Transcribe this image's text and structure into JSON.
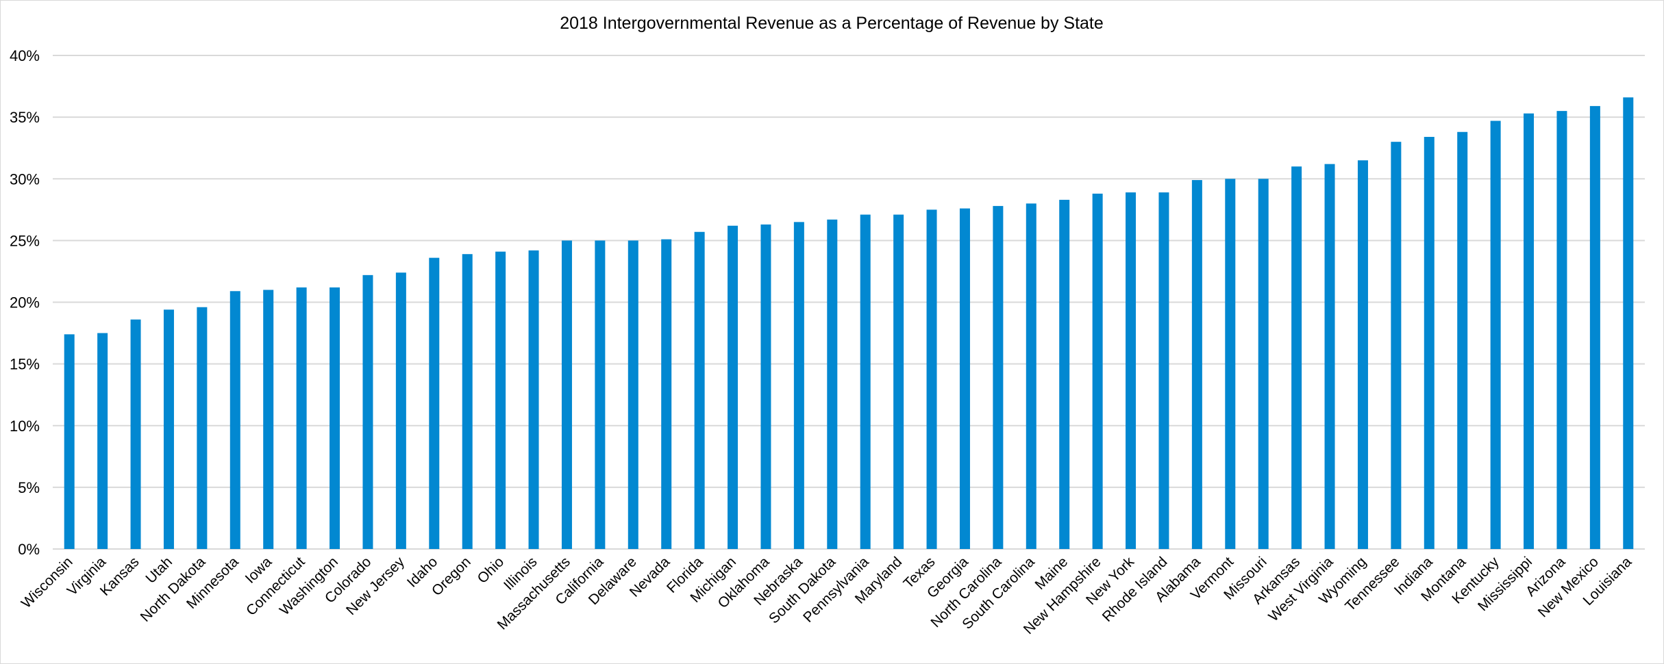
{
  "chart_data": {
    "type": "bar",
    "title": "2018 Intergovernmental Revenue as a Percentage of Revenue by State",
    "xlabel": "",
    "ylabel": "",
    "ylim": [
      0,
      40
    ],
    "yticks": [
      "0%",
      "5%",
      "10%",
      "15%",
      "20%",
      "25%",
      "30%",
      "35%",
      "40%"
    ],
    "grid": true,
    "bar_color": "#0288D1",
    "categories": [
      "Wisconsin",
      "Virginia",
      "Kansas",
      "Utah",
      "North Dakota",
      "Minnesota",
      "Iowa",
      "Connecticut",
      "Washington",
      "Colorado",
      "New Jersey",
      "Idaho",
      "Oregon",
      "Ohio",
      "Illinois",
      "Massachusetts",
      "California",
      "Delaware",
      "Nevada",
      "Florida",
      "Michigan",
      "Oklahoma",
      "Nebraska",
      "South Dakota",
      "Pennsylvania",
      "Maryland",
      "Texas",
      "Georgia",
      "North Carolina",
      "South Carolina",
      "Maine",
      "New Hampshire",
      "New York",
      "Rhode Island",
      "Alabama",
      "Vermont",
      "Missouri",
      "Arkansas",
      "West Virginia",
      "Wyoming",
      "Tennessee",
      "Indiana",
      "Montana",
      "Kentucky",
      "Mississippi",
      "Arizona",
      "New Mexico",
      "Louisiana"
    ],
    "values": [
      17.4,
      17.5,
      18.6,
      19.4,
      19.6,
      20.9,
      21.0,
      21.2,
      21.2,
      22.2,
      22.4,
      23.6,
      23.9,
      24.1,
      24.2,
      25.0,
      25.0,
      25.0,
      25.1,
      25.7,
      26.2,
      26.3,
      26.5,
      26.7,
      27.1,
      27.1,
      27.5,
      27.6,
      27.8,
      28.0,
      28.3,
      28.8,
      28.9,
      28.9,
      29.9,
      30.0,
      30.0,
      31.0,
      31.2,
      31.5,
      33.0,
      33.4,
      33.8,
      34.7,
      35.3,
      35.5,
      35.9,
      36.6
    ]
  }
}
